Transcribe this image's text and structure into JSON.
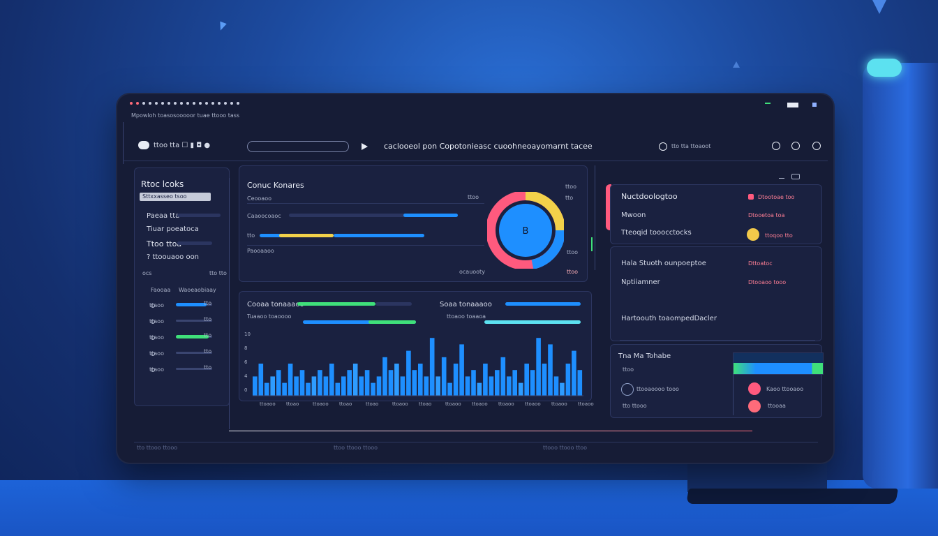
{
  "colors": {
    "accent_blue": "#1e8fff",
    "accent_green": "#3fe07a",
    "accent_yellow": "#f2d14a",
    "accent_pink": "#ff5a7e",
    "accent_cyan": "#5ce1f0",
    "panel_bg": "#1a2140"
  },
  "window": {
    "breadcrumb": "Mpowloh toasosooooor tuae ttooo tass",
    "icons": [
      "minimize-icon",
      "maximize-icon",
      "close-icon"
    ]
  },
  "toolbar": {
    "nav_text": "ttoo tta ☐ ▮ ◘ ●",
    "search_placeholder": "",
    "title": "caclooeol pon Copotonieasc cuoohneoayomarnt tacee",
    "user_label": "tto tta ttoaoot"
  },
  "sidebar": {
    "title": "Rtoc lcoks",
    "items": [
      {
        "label": "Sttxxasseo tsoo"
      },
      {
        "label": "Paeaa tta"
      },
      {
        "label": "Tiuar poeatoca"
      },
      {
        "label": "Ttoo ttoa"
      },
      {
        "label": "? ttoouaoo oon"
      }
    ],
    "section_left": "ocs",
    "section_right": "tto tto",
    "col_a": "Faooaa",
    "col_b": "Waoeaobiaay",
    "metrics": [
      {
        "label": "ttaoo",
        "value": "tto",
        "level": 0.85
      },
      {
        "label": "ttaoo",
        "value": "tto",
        "level": 0.0
      },
      {
        "label": "ttaoo",
        "value": "tto",
        "level": 0.9
      },
      {
        "label": "ttaoo",
        "value": "tto",
        "level": 0.0
      },
      {
        "label": "ttaoo",
        "value": "tto",
        "level": 0.0
      }
    ]
  },
  "card_top": {
    "title": "Conuc Konares",
    "corner": "ttoo",
    "rows": [
      {
        "label": "Ceooaoo",
        "tail": "ttoo"
      },
      {
        "label": "Caaoocoaoc",
        "tail": "tto"
      },
      {
        "label": "tto",
        "tail": "ttoo"
      },
      {
        "label": "Paooaaoo",
        "tail": "tto"
      }
    ],
    "footer": "ocauooty",
    "legend_top": "tto",
    "legend_mid": "ttoo",
    "legend_bottom": "ttoo",
    "donut_label": "B"
  },
  "card_bottom": {
    "title_left": "Cooaa tonaaaoo",
    "title_right": "Soaa tonaaaoo",
    "sub_left": "Tuaaoo toaoooo",
    "sub_right": "ttoaoo toaaoa",
    "y_ticks": [
      "10",
      "8",
      "6",
      "4",
      "0"
    ],
    "x_labels": [
      "ttoaoo",
      "ttoao",
      "ttoaoo",
      "ttoao",
      "ttoao",
      "ttoaoo",
      "ttoao",
      "ttoaoo",
      "ttoaoo",
      "ttoaoo",
      "ttoaoo",
      "ttoaoo",
      "ttoaoo"
    ]
  },
  "chart_data": {
    "type": "bar",
    "values": [
      3,
      5,
      2,
      3,
      4,
      2,
      5,
      3,
      4,
      2,
      3,
      4,
      3,
      5,
      2,
      3,
      4,
      5,
      3,
      4,
      2,
      3,
      6,
      4,
      5,
      3,
      7,
      4,
      5,
      3,
      9,
      3,
      6,
      2,
      5,
      8,
      3,
      4,
      2,
      5,
      3,
      4,
      6,
      3,
      4,
      2,
      5,
      4,
      9,
      5,
      8,
      3,
      2,
      5,
      7,
      4
    ],
    "ylim": [
      0,
      10
    ]
  },
  "right_panel": {
    "header_icons": [
      "gear-icon",
      "battery-icon"
    ],
    "block1": [
      {
        "label": "Nuctdoologtoo",
        "value": "Dtootoae too"
      },
      {
        "label": "Mwoon",
        "value": "Dtooetoa toa"
      },
      {
        "label": "Tteoqid tooocctocks",
        "value": "ttoqoo tto"
      }
    ],
    "block2": [
      {
        "label": "Hala Stuoth ounpoeptoe",
        "value": "Dttoatoc"
      },
      {
        "label": "Nptiiamner",
        "value": "Dtooaoo tooo"
      },
      {
        "label": "Hartoouth toaompedDacler",
        "value": ""
      }
    ],
    "block3": {
      "title": "Tna Ma Tohabe",
      "sub": "ttoo",
      "items": [
        {
          "label": "ttooaoooo tooo",
          "value": "Kaoo ttooaoo"
        },
        {
          "label": "tto ttooo",
          "value": "ttooaa"
        }
      ]
    }
  },
  "footer": {
    "left": "tto ttooo ttooo",
    "mid": "ttoo ttooo ttooo",
    "right": "ttooo ttooo ttoo"
  }
}
